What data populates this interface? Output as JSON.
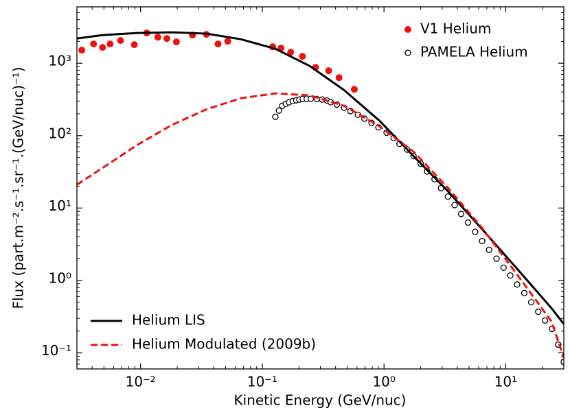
{
  "chart_data": {
    "type": "line",
    "x_label": "Kinetic Energy (GeV/nuc)",
    "y_label": "Flux (part.m⁻².s⁻¹.sr⁻¹.(GeV/nuc)⁻¹)",
    "x_log": true,
    "y_log": true,
    "xlim": [
      0.003,
      30
    ],
    "ylim": [
      0.06,
      6000
    ],
    "xticks": [
      {
        "value": 0.01,
        "label": "10⁻²"
      },
      {
        "value": 0.1,
        "label": "10⁻¹"
      },
      {
        "value": 1,
        "label": "10⁰"
      },
      {
        "value": 10,
        "label": "10¹"
      }
    ],
    "yticks": [
      {
        "value": 0.1,
        "label": "10⁻¹"
      },
      {
        "value": 1,
        "label": "10⁰"
      },
      {
        "value": 10,
        "label": "10¹"
      },
      {
        "value": 100,
        "label": "10²"
      },
      {
        "value": 1000,
        "label": "10³"
      }
    ],
    "series": [
      {
        "name": "V1 Helium",
        "kind": "scatter",
        "marker": "filled",
        "color": "#ee1111",
        "legend": "upper right",
        "x": [
          0.00329,
          0.00411,
          0.00487,
          0.00562,
          0.00684,
          0.00889,
          0.01125,
          0.01387,
          0.01644,
          0.0197,
          0.0267,
          0.0347,
          0.0433,
          0.052,
          0.1216,
          0.1423,
          0.171,
          0.2136,
          0.274,
          0.351,
          0.427,
          0.57
        ],
        "values": [
          1514,
          1843,
          1652,
          1843,
          2055,
          1803,
          2612,
          2291,
          2193,
          1968,
          2450,
          2500,
          1843,
          2010,
          1688,
          1618,
          1418,
          1244,
          877,
          787,
          632,
          436
        ]
      },
      {
        "name": "PAMELA Helium",
        "kind": "scatter",
        "marker": "open",
        "color": "#000000",
        "legend": "upper right",
        "x": [
          0.128,
          0.137,
          0.146,
          0.156,
          0.166,
          0.178,
          0.19,
          0.202,
          0.215,
          0.232,
          0.25,
          0.28,
          0.31,
          0.34,
          0.365,
          0.41,
          0.47,
          0.53,
          0.61,
          0.69,
          0.79,
          0.9,
          1.05,
          1.2,
          1.34,
          1.55,
          1.75,
          2.0,
          2.26,
          2.6,
          2.94,
          3.35,
          3.8,
          4.3,
          4.9,
          5.6,
          6.4,
          7.3,
          8.4,
          9.6,
          10.9,
          12.4,
          14.2,
          16.2,
          18.5,
          21,
          24,
          27,
          30
        ],
        "values": [
          182,
          222,
          258,
          275,
          289,
          300,
          308,
          315,
          321,
          322,
          322,
          321,
          315,
          305,
          289,
          268,
          242,
          218,
          194,
          172,
          150,
          130,
          110,
          93,
          77,
          64,
          52,
          41,
          32,
          25,
          18.8,
          14.4,
          11,
          8.3,
          6.3,
          4.7,
          3.5,
          2.65,
          2.0,
          1.5,
          1.17,
          0.88,
          0.67,
          0.5,
          0.37,
          0.28,
          0.215,
          0.13,
          0.075
        ]
      },
      {
        "name": "Helium LIS",
        "kind": "line",
        "dash": "solid",
        "color": "#000000",
        "legend": "lower left",
        "x": [
          0.003,
          0.0049,
          0.0094,
          0.018,
          0.035,
          0.067,
          0.128,
          0.245,
          0.47,
          0.92,
          1.75,
          3.37,
          6.4,
          12.3,
          23.8,
          30
        ],
        "values": [
          2193,
          2450,
          2610,
          2670,
          2560,
          2140,
          1580,
          917,
          425,
          160,
          52,
          16.9,
          5.1,
          1.47,
          0.413,
          0.25
        ]
      },
      {
        "name": "Helium Modulated (2009b)",
        "kind": "line",
        "dash": "dashed",
        "color": "#ee1111",
        "legend": "lower left",
        "x": [
          0.003,
          0.0049,
          0.0094,
          0.018,
          0.035,
          0.067,
          0.128,
          0.245,
          0.47,
          0.92,
          1.75,
          3.37,
          6.4,
          12.3,
          23.8,
          30
        ],
        "values": [
          21,
          36,
          74.5,
          140,
          232,
          329,
          383,
          359,
          258,
          134,
          60,
          18.8,
          5.3,
          1.23,
          0.27,
          0.086
        ]
      }
    ]
  }
}
